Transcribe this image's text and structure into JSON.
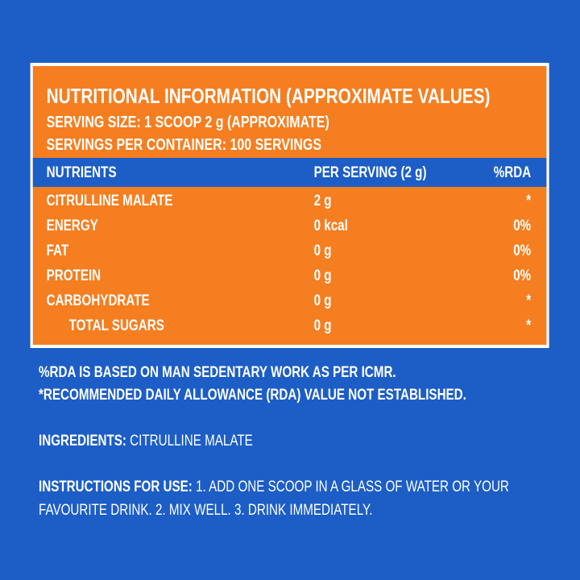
{
  "label": {
    "title": "NUTRITIONAL INFORMATION (APPROXIMATE VALUES)",
    "serving_size": "SERVING SIZE: 1 SCOOP 2 g (APPROXIMATE)",
    "servings_per_container": "SERVINGS PER CONTAINER: 100 SERVINGS",
    "table": {
      "header": [
        "NUTRIENTS",
        "PER SERVING (2 g)",
        "%RDA"
      ],
      "rows": [
        [
          "CITRULLINE MALATE",
          "2 g",
          "*"
        ],
        [
          "ENERGY",
          "0 kcal",
          "0%"
        ],
        [
          "FAT",
          "0 g",
          "0%"
        ],
        [
          "PROTEIN",
          "0 g",
          "0%"
        ],
        [
          "CARBOHYDRATE",
          "0 g",
          "*"
        ],
        [
          "TOTAL SUGARS",
          "0 g",
          "*"
        ]
      ]
    }
  },
  "notes": [
    "%RDA IS BASED ON MAN SEDENTARY WORK AS PER ICMR.",
    "*RECOMMENDED DAILY ALLOWANCE (RDA) VALUE NOT ESTABLISHED."
  ],
  "ingredients": {
    "label": "INGREDIENTS:",
    "text": "CITRULLINE MALATE"
  },
  "instructions": {
    "label": "INSTRUCTIONS FOR USE:",
    "text": "1.  ADD ONE SCOOP IN A GLASS OF WATER OR YOUR FAVOURITE DRINK. 2.  MIX WELL. 3.  DRINK IMMEDIATELY."
  }
}
